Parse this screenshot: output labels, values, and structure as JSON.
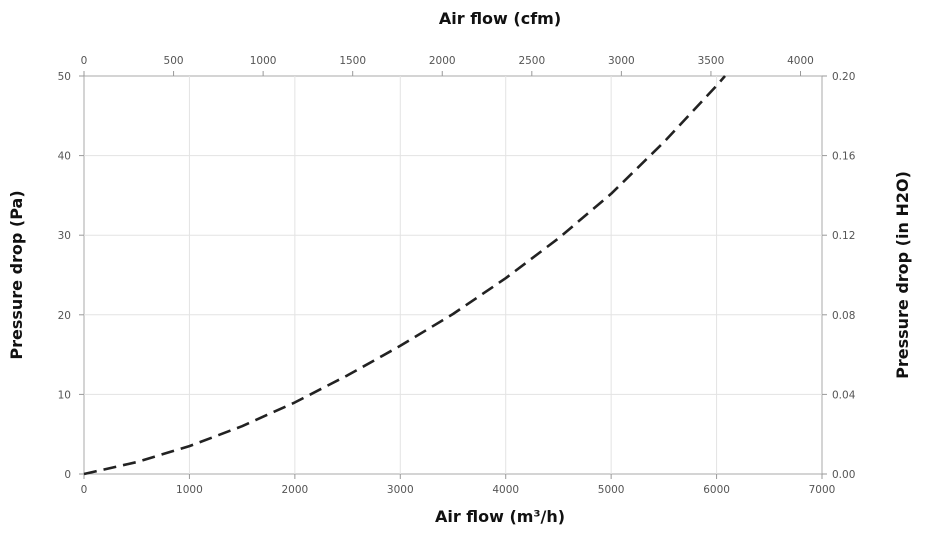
{
  "chart_data": {
    "type": "line",
    "title": "",
    "xlabel_bottom": "Air flow (m³/h)",
    "xlabel_top": "Air flow (cfm)",
    "ylabel_left": "Pressure drop (Pa)",
    "ylabel_right": "Pressure drop (in H2O)",
    "xlim": [
      0,
      7000
    ],
    "ylim": [
      0,
      50
    ],
    "x2lim": [
      0,
      4120
    ],
    "y2lim": [
      0,
      0.2
    ],
    "x_ticks": [
      "0",
      "1000",
      "2000",
      "3000",
      "4000",
      "5000",
      "6000",
      "7000"
    ],
    "x_tick_values": [
      0,
      1000,
      2000,
      3000,
      4000,
      5000,
      6000,
      7000
    ],
    "x2_ticks": [
      "0",
      "500",
      "1000",
      "1500",
      "2000",
      "2500",
      "3000",
      "3500",
      "4000"
    ],
    "x2_tick_values": [
      0,
      500,
      1000,
      1500,
      2000,
      2500,
      3000,
      3500,
      4000
    ],
    "y_ticks": [
      "0",
      "10",
      "20",
      "30",
      "40",
      "50"
    ],
    "y_tick_values": [
      0,
      10,
      20,
      30,
      40,
      50
    ],
    "y2_ticks": [
      "0.00",
      "0.04",
      "0.08",
      "0.12",
      "0.16",
      "0.20"
    ],
    "y2_tick_values": [
      0,
      0.04,
      0.08,
      0.12,
      0.16,
      0.2
    ],
    "grid": true,
    "series": [
      {
        "line_style": "dashed",
        "color": "#222222",
        "x": [
          0,
          500,
          1000,
          1500,
          2000,
          2500,
          3000,
          3500,
          4000,
          4500,
          5000,
          5500,
          6000,
          6080
        ],
        "y": [
          0,
          1.5,
          3.5,
          6.0,
          9.0,
          12.4,
          16.1,
          20.1,
          24.6,
          29.6,
          35.2,
          41.7,
          48.8,
          50
        ]
      }
    ]
  }
}
